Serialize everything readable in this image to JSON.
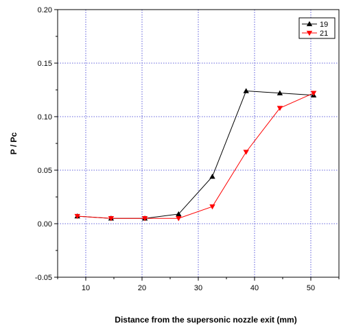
{
  "chart_data": {
    "type": "line",
    "xlabel": "Distance from the supersonic nozzle exit (mm)",
    "ylabel": "P / Pc",
    "xlim": [
      5,
      55
    ],
    "ylim": [
      -0.05,
      0.2
    ],
    "xticks": [
      10,
      20,
      30,
      40,
      50
    ],
    "yticks": [
      -0.05,
      0.0,
      0.05,
      0.1,
      0.15,
      0.2
    ],
    "ytick_labels": [
      "-0.05",
      "0.00",
      "0.05",
      "0.10",
      "0.15",
      "0.20"
    ],
    "grid": true,
    "legend_position": "top-right",
    "series": [
      {
        "name": "19",
        "color": "#000000",
        "marker": "triangle-up",
        "x": [
          8.5,
          14.5,
          20.5,
          26.5,
          32.5,
          38.5,
          44.5,
          50.5
        ],
        "y": [
          0.007,
          0.005,
          0.005,
          0.009,
          0.044,
          0.124,
          0.122,
          0.12
        ]
      },
      {
        "name": "21",
        "color": "#ff0000",
        "marker": "triangle-down",
        "x": [
          8.5,
          14.5,
          20.5,
          26.5,
          32.5,
          38.5,
          44.5,
          50.5
        ],
        "y": [
          0.007,
          0.005,
          0.005,
          0.005,
          0.016,
          0.067,
          0.108,
          0.122
        ]
      }
    ]
  }
}
